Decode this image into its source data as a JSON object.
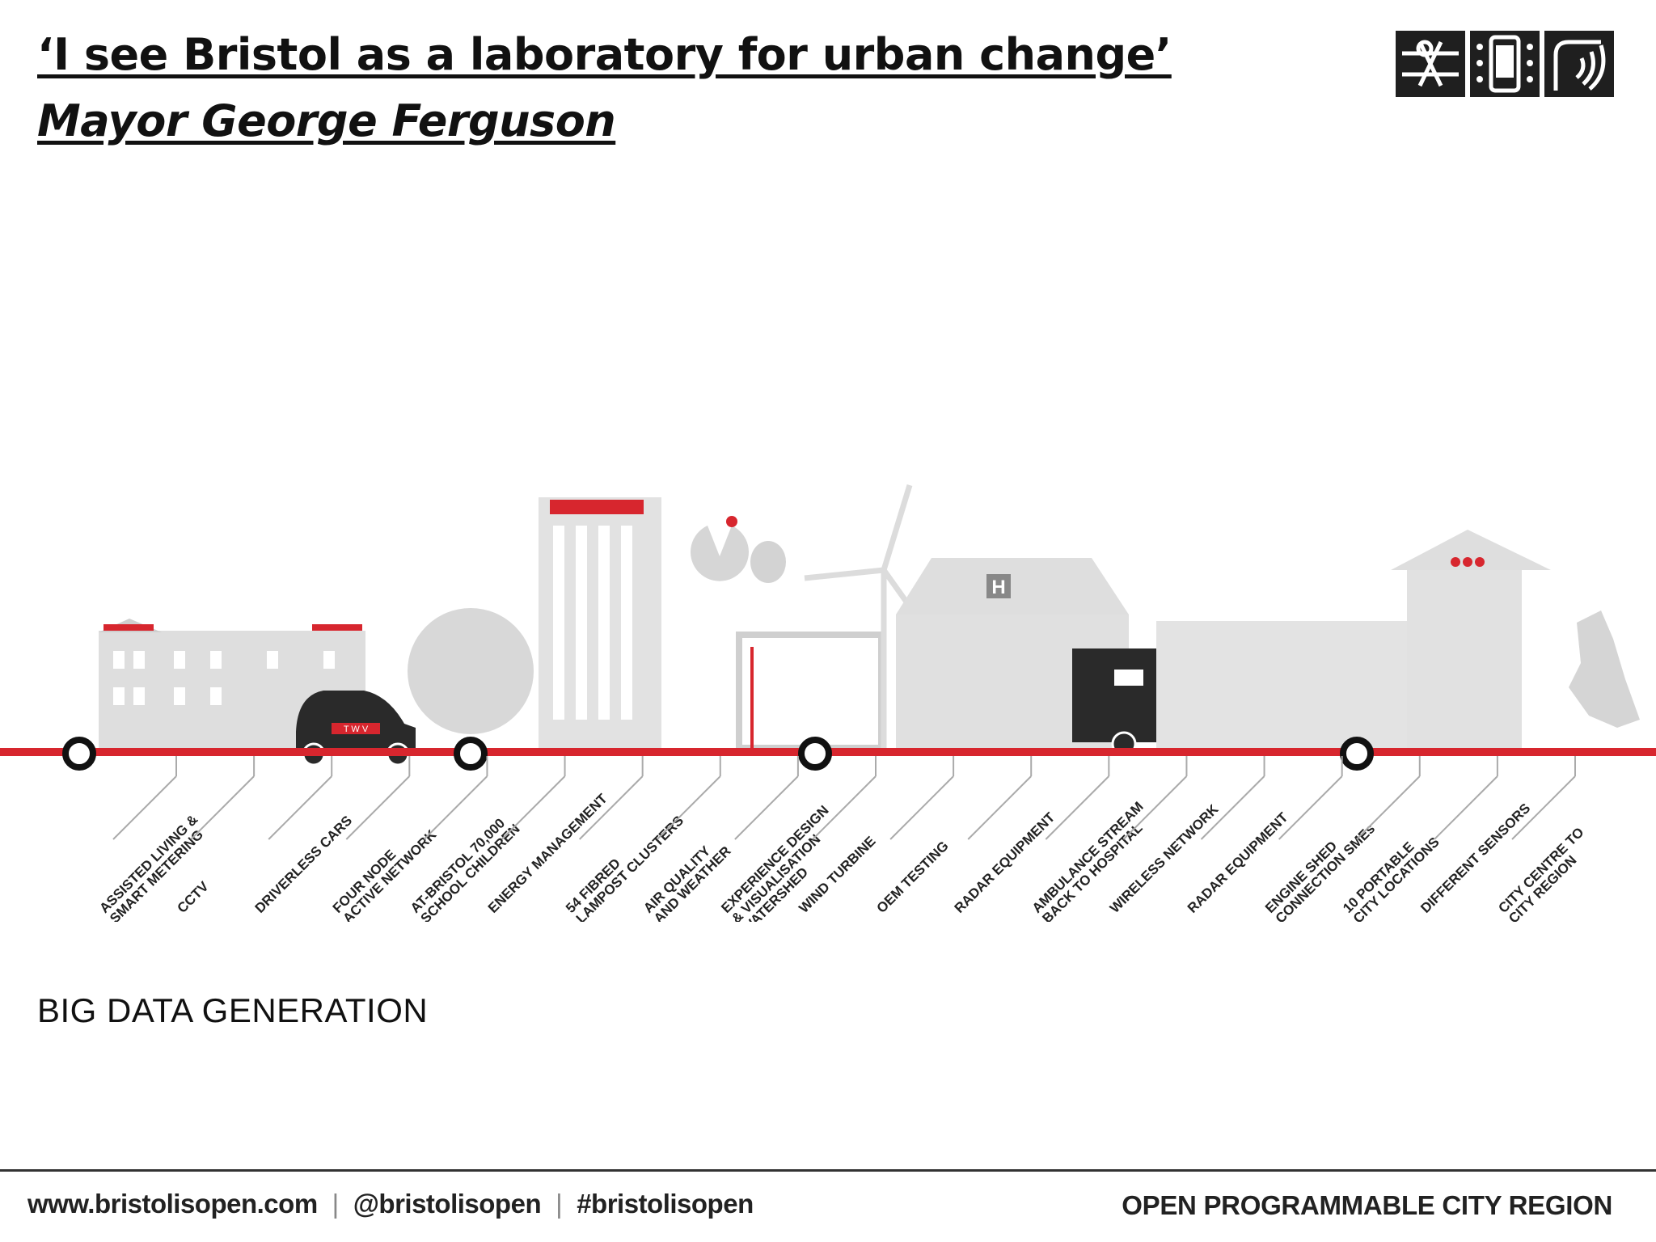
{
  "title": "‘I see Bristol as a laboratory for urban change’",
  "subtitle": "Mayor George Ferguson",
  "logo_icons": [
    "network-icon",
    "phone-icon",
    "signal-icon"
  ],
  "scene": {
    "hospital_sign": "H",
    "vehicle_badge": "T W V",
    "labels": [
      "ASSISTED LIVING &|SMART METERING",
      "CCTV",
      "DRIVERLESS CARS",
      "FOUR NODE|ACTIVE NETWORK",
      "AT-BRISTOL 70,000|SCHOOL CHILDREN",
      "ENERGY MANAGEMENT",
      "54 FIBRED|LAMPOST CLUSTERS",
      "AIR QUALITY|AND WEATHER",
      "EXPERIENCE DESIGN|& VISUALISATION|WATERSHED",
      "WIND TURBINE",
      "OEM TESTING",
      "RADAR EQUIPMENT",
      "AMBULANCE STREAM|BACK TO HOSPITAL",
      "WIRELESS NETWORK",
      "RADAR EQUIPMENT",
      "ENGINE SHED|CONNECTION SMEs",
      "10 PORTABLE|CITY LOCATIONS",
      "DIFFERENT SENSORS",
      "CITY CENTRE TO|CITY REGION"
    ]
  },
  "big_data_label": "BIG DATA GENERATION",
  "footer": {
    "website": "www.bristolisopen.com",
    "separator": "|",
    "twitter": "@bristolisopen",
    "hashtag": "#bristolisopen",
    "tagline": "OPEN PROGRAMMABLE CITY REGION"
  },
  "colors": {
    "accent_red": "#d7262e",
    "building_grey": "#dcdcdc",
    "dark": "#2a2a2a"
  }
}
